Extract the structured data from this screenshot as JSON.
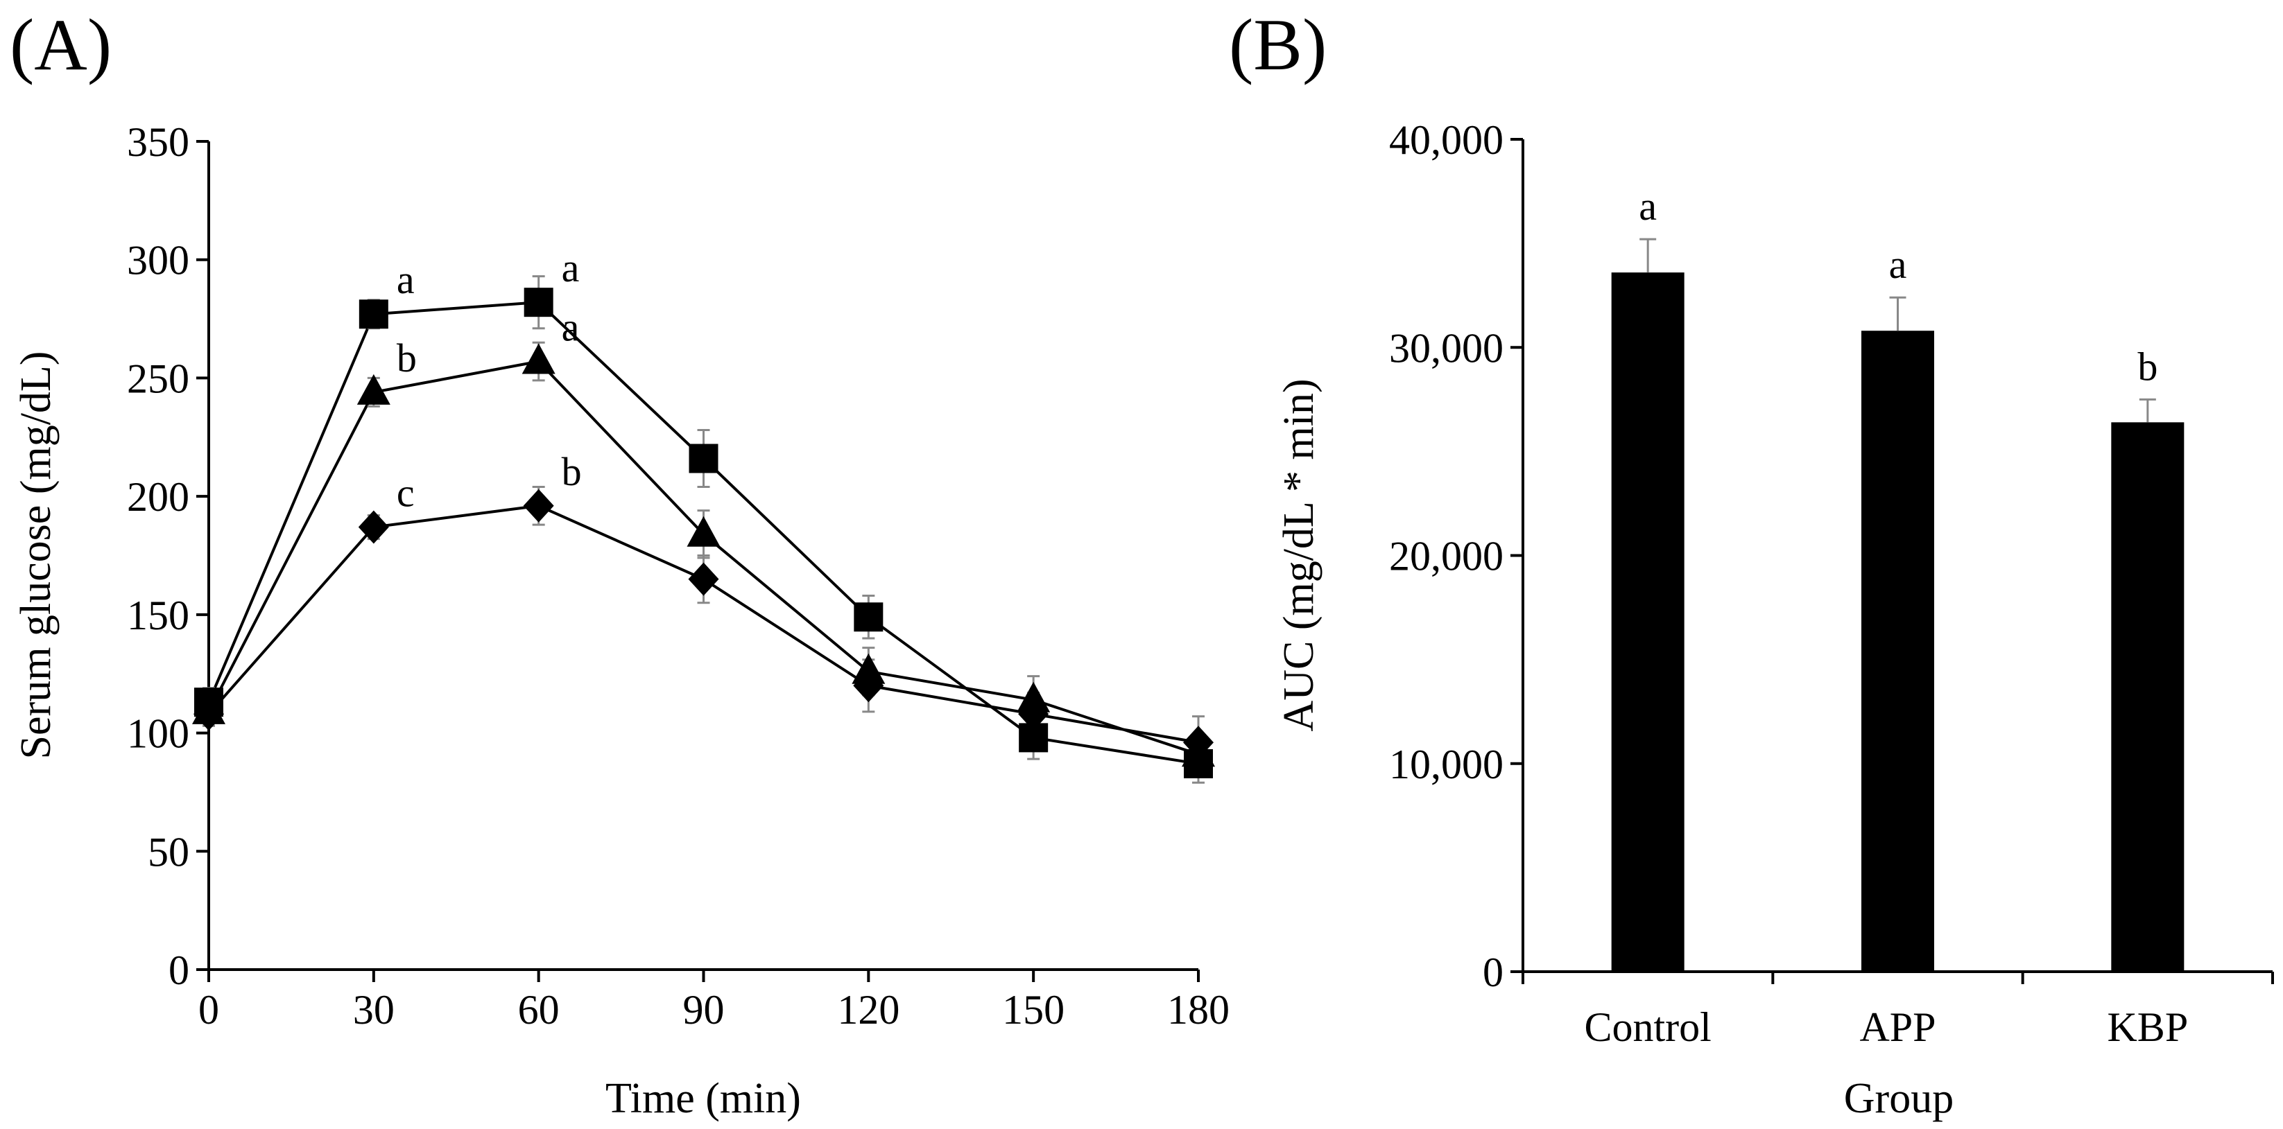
{
  "chart_data": [
    {
      "panel_label": "(A)",
      "type": "line",
      "xlabel": "Time (min)",
      "ylabel": "Serum glucose (mg/dL)",
      "ylim": [
        0,
        350
      ],
      "xlim": [
        0,
        180
      ],
      "x": [
        0,
        30,
        60,
        90,
        120,
        150,
        180
      ],
      "x_tick_labels": [
        "0",
        "30",
        "60",
        "90",
        "120",
        "150",
        "180"
      ],
      "y_ticks": [
        0,
        50,
        100,
        150,
        200,
        250,
        300,
        350
      ],
      "y_tick_labels": [
        "0",
        "50",
        "100",
        "150",
        "200",
        "250",
        "300",
        "350"
      ],
      "grid": false,
      "series": [
        {
          "marker": "square",
          "values": [
            113,
            277,
            282,
            216,
            149,
            98,
            87
          ],
          "errors": [
            6,
            6,
            11,
            12,
            9,
            9,
            8
          ],
          "labels": [
            null,
            "a",
            "a",
            null,
            null,
            null,
            null
          ]
        },
        {
          "marker": "triangle",
          "values": [
            109,
            244,
            257,
            184,
            126,
            114,
            91
          ],
          "errors": [
            5,
            6,
            8,
            10,
            10,
            10,
            8
          ],
          "labels": [
            null,
            "b",
            "a",
            null,
            null,
            null,
            null
          ]
        },
        {
          "marker": "diamond",
          "values": [
            108,
            187,
            196,
            165,
            120,
            108,
            96
          ],
          "errors": [
            5,
            5,
            8,
            10,
            11,
            9,
            11
          ],
          "labels": [
            null,
            "c",
            "b",
            null,
            null,
            null,
            null
          ]
        }
      ]
    },
    {
      "panel_label": "(B)",
      "type": "bar",
      "xlabel": "Group",
      "ylabel": "AUC (mg/dL * min)",
      "ylim": [
        0,
        40000
      ],
      "categories": [
        "Control",
        "APP",
        "KBP"
      ],
      "values": [
        33600,
        30800,
        26400
      ],
      "errors": [
        1600,
        1600,
        1100
      ],
      "labels": [
        "a",
        "a",
        "b"
      ],
      "y_ticks": [
        0,
        10000,
        20000,
        30000,
        40000
      ],
      "y_tick_labels": [
        "0",
        "10,000",
        "20,000",
        "30,000",
        "40,000"
      ],
      "grid": false
    }
  ]
}
